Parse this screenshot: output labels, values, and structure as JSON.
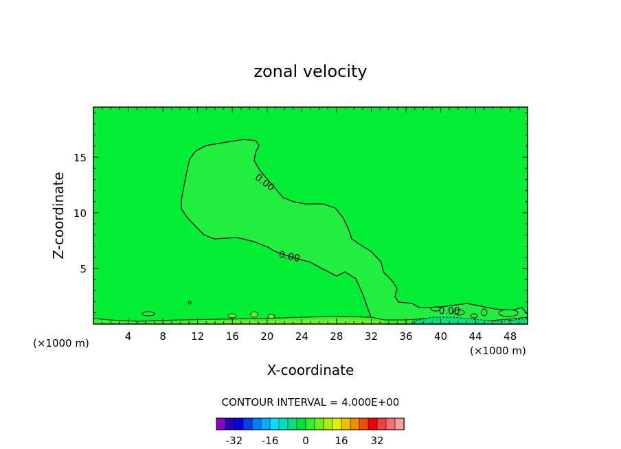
{
  "chart_data": {
    "type": "heatmap",
    "title": "zonal velocity",
    "xlabel": "X-coordinate",
    "ylabel": "Z-coordinate",
    "x_unit_left": "(×1000 m)",
    "x_unit_right": "(×1000 m)",
    "xlim": [
      0,
      50
    ],
    "ylim": [
      0,
      19.5
    ],
    "x_ticks": [
      4,
      8,
      12,
      16,
      20,
      24,
      28,
      32,
      36,
      40,
      44,
      48
    ],
    "y_ticks": [
      5,
      10,
      15
    ],
    "background_color": "#00ee33",
    "contour_labels": [
      {
        "text": "0.00",
        "x": 19.5,
        "y": 12.5
      },
      {
        "text": "0.00",
        "x": 22.5,
        "y": 5.8
      },
      {
        "text": "0.00",
        "x": 41.0,
        "y": 0.9
      }
    ],
    "contour_interval_text": "CONTOUR INTERVAL = 4.000E+00",
    "colorbar": {
      "colors": [
        "#8a00c8",
        "#2a00b0",
        "#0000e0",
        "#0040f0",
        "#0080ff",
        "#00b0ff",
        "#00e0ff",
        "#00e0c0",
        "#00e080",
        "#00e040",
        "#30f030",
        "#70ee20",
        "#a8f000",
        "#e0f000",
        "#f0c000",
        "#f08c00",
        "#f05000",
        "#f00000",
        "#f04040",
        "#f07070",
        "#f5a0a0"
      ],
      "tick_labels": [
        "-32",
        "-16",
        "0",
        "16",
        "32"
      ],
      "tick_values": [
        -32,
        -16,
        0,
        16,
        32
      ],
      "vmin": -40,
      "vmax": 44
    }
  }
}
